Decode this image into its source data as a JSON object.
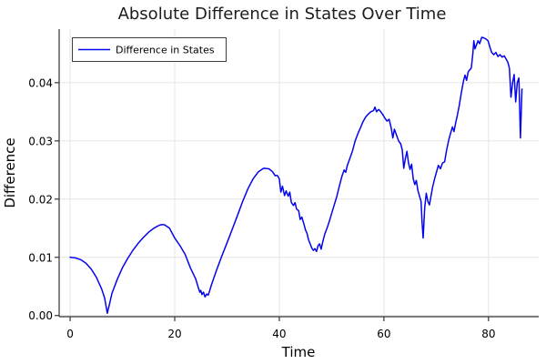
{
  "colors": {
    "line": "#0404ee",
    "grid": "#e4e4e4",
    "spine": "#33343a",
    "legend_border": "#3c3c3c",
    "background": "#ffffff"
  },
  "chart_data": {
    "type": "line",
    "title": "Absolute Difference in States Over Time",
    "xlabel": "Time",
    "ylabel": "Difference",
    "xlim": [
      -2.1,
      89.6
    ],
    "ylim": [
      -0.0002,
      0.0492
    ],
    "grid": true,
    "legend": {
      "position": "top-left",
      "entries": [
        "Difference in States"
      ]
    },
    "xticks": {
      "values": [
        0,
        20,
        40,
        60,
        80
      ],
      "labels": [
        "0",
        "20",
        "40",
        "60",
        "80"
      ]
    },
    "yticks": {
      "values": [
        0,
        0.01,
        0.02,
        0.03,
        0.04
      ],
      "labels": [
        "0.00",
        "0.01",
        "0.02",
        "0.03",
        "0.04"
      ]
    },
    "series": [
      {
        "name": "Difference in States",
        "color": "#0404ee",
        "x": [
          0,
          1,
          2,
          3,
          4,
          5,
          6,
          6.6,
          7.1,
          7.6,
          8,
          9,
          10,
          11,
          12,
          13,
          14,
          15,
          16,
          17,
          17.5,
          18,
          19,
          20,
          21,
          22,
          23,
          24,
          24.5,
          24.8,
          25,
          25.2,
          25.5,
          25.8,
          26.1,
          26.4,
          26.7,
          27,
          27.5,
          28,
          29,
          30,
          31,
          32,
          33,
          34,
          35,
          36,
          37,
          38,
          38.7,
          39.2,
          39.6,
          40,
          40.3,
          40.6,
          41,
          41.3,
          41.7,
          42,
          42.3,
          42.7,
          43,
          43.3,
          43.7,
          44,
          44.3,
          44.7,
          45,
          45.3,
          45.6,
          45.9,
          46.2,
          46.5,
          46.8,
          47.1,
          47.4,
          47.7,
          48,
          48.3,
          48.7,
          49.2,
          49.6,
          50,
          50.5,
          51,
          51.5,
          52,
          52.4,
          52.7,
          53,
          53.5,
          54,
          54.5,
          55,
          55.5,
          56,
          56.5,
          57,
          57.5,
          58,
          58.3,
          58.6,
          59,
          59.4,
          59.8,
          60.2,
          60.6,
          61,
          61.4,
          61.7,
          62,
          62.4,
          62.8,
          63.2,
          63.5,
          63.8,
          64.1,
          64.4,
          64.7,
          65,
          65.3,
          65.6,
          65.9,
          66.2,
          66.5,
          66.8,
          67.1,
          67.3,
          67.5,
          67.8,
          68.1,
          68.4,
          68.7,
          69,
          69.3,
          69.7,
          70,
          70.4,
          70.8,
          71.2,
          71.6,
          72,
          72.4,
          72.8,
          73.1,
          73.4,
          73.7,
          74,
          74.4,
          74.8,
          75.2,
          75.5,
          75.8,
          76.1,
          76.4,
          76.7,
          77,
          77.2,
          77.4,
          77.7,
          78,
          78.3,
          78.7,
          79.1,
          79.5,
          79.9,
          80.3,
          80.6,
          81,
          81.4,
          81.8,
          82.2,
          82.6,
          83,
          83.4,
          83.7,
          84,
          84.3,
          84.6,
          84.9,
          85.2,
          85.5,
          85.8,
          86.1,
          86.4
        ],
        "y": [
          0.01,
          0.0099,
          0.0096,
          0.009,
          0.008,
          0.0066,
          0.0046,
          0.003,
          0.0004,
          0.0022,
          0.0038,
          0.0062,
          0.0082,
          0.0098,
          0.0112,
          0.0124,
          0.0134,
          0.0143,
          0.015,
          0.0155,
          0.0156,
          0.0156,
          0.015,
          0.0133,
          0.012,
          0.0105,
          0.0082,
          0.0063,
          0.0048,
          0.004,
          0.0043,
          0.0036,
          0.004,
          0.0032,
          0.0037,
          0.0035,
          0.0043,
          0.0052,
          0.0065,
          0.0078,
          0.0102,
          0.0125,
          0.0148,
          0.0172,
          0.0196,
          0.0218,
          0.0235,
          0.0247,
          0.0253,
          0.0252,
          0.0247,
          0.024,
          0.0241,
          0.0235,
          0.0212,
          0.0222,
          0.0206,
          0.0214,
          0.0205,
          0.0212,
          0.0194,
          0.0189,
          0.0194,
          0.0183,
          0.018,
          0.0165,
          0.0169,
          0.0157,
          0.0147,
          0.0141,
          0.013,
          0.0123,
          0.0116,
          0.0112,
          0.0115,
          0.011,
          0.012,
          0.0123,
          0.0114,
          0.0126,
          0.014,
          0.0152,
          0.0163,
          0.0175,
          0.019,
          0.0205,
          0.0223,
          0.024,
          0.025,
          0.0246,
          0.0258,
          0.027,
          0.0283,
          0.03,
          0.0312,
          0.0322,
          0.0333,
          0.0341,
          0.0346,
          0.035,
          0.0352,
          0.0358,
          0.035,
          0.0354,
          0.035,
          0.0345,
          0.0339,
          0.0334,
          0.0337,
          0.0322,
          0.0305,
          0.032,
          0.031,
          0.03,
          0.0295,
          0.0285,
          0.0253,
          0.027,
          0.0282,
          0.0262,
          0.0251,
          0.026,
          0.0235,
          0.0225,
          0.0232,
          0.0215,
          0.0205,
          0.0196,
          0.016,
          0.0133,
          0.0185,
          0.021,
          0.0196,
          0.019,
          0.0205,
          0.022,
          0.0235,
          0.0245,
          0.0258,
          0.0252,
          0.0262,
          0.0264,
          0.0285,
          0.0302,
          0.0315,
          0.0324,
          0.0316,
          0.033,
          0.0342,
          0.036,
          0.0382,
          0.0402,
          0.0413,
          0.0404,
          0.0418,
          0.0422,
          0.0425,
          0.045,
          0.0472,
          0.0458,
          0.0465,
          0.0472,
          0.0467,
          0.0478,
          0.0477,
          0.0475,
          0.0472,
          0.046,
          0.0452,
          0.0448,
          0.0452,
          0.0445,
          0.0448,
          0.0444,
          0.0446,
          0.044,
          0.0435,
          0.0425,
          0.0375,
          0.04,
          0.0414,
          0.0367,
          0.04,
          0.0408,
          0.0305,
          0.0389
        ]
      }
    ]
  }
}
